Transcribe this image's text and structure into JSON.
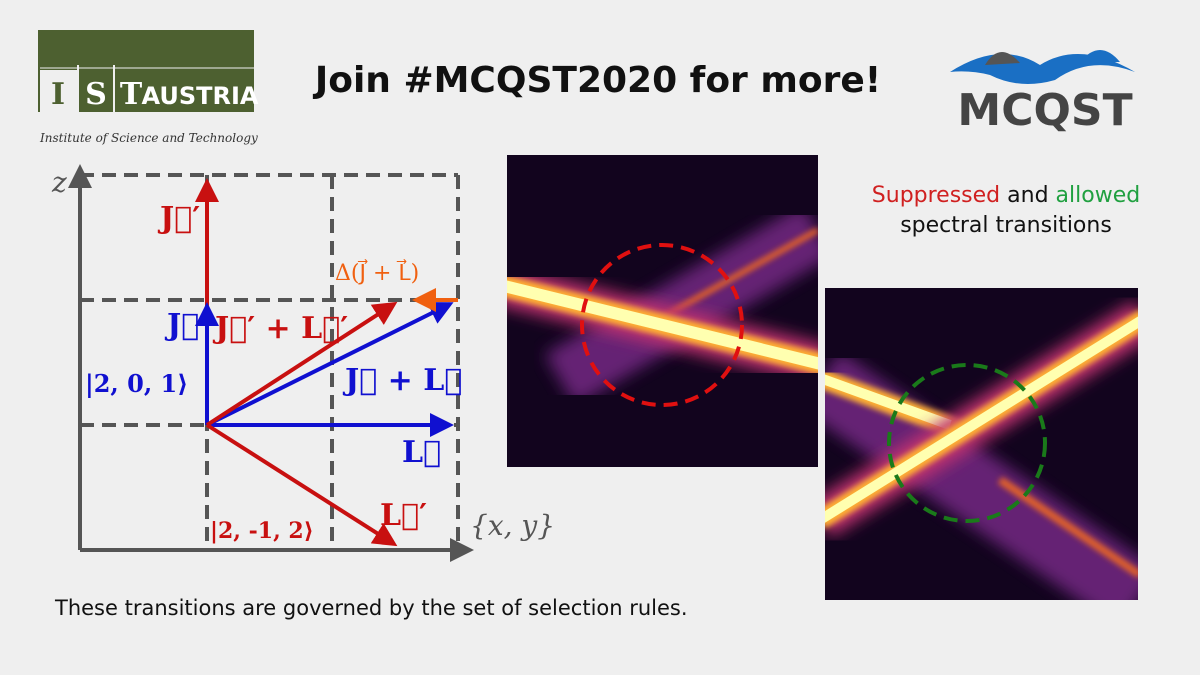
{
  "logo_left": {
    "letters": [
      "I",
      "S",
      "T"
    ],
    "word": "AUSTRIA",
    "tagline": "Institute of Science and Technology"
  },
  "title": "Join #MCQST2020 for more!",
  "logo_right": {
    "text": "MCQST"
  },
  "diagram": {
    "axis_z": "z",
    "axis_xy": "{x, y}",
    "j_prime": "J⃗′",
    "j": "J⃗",
    "j_prime_plus_l_prime": "J⃗′ + L⃗′",
    "delta": "Δ(J⃗ + L⃗)",
    "j_plus_l": "J⃗ + L⃗",
    "state_a": "|2, 0, 1⟩",
    "l": "L⃗",
    "l_prime": "L⃗′",
    "state_b": "|2, -1, 2⟩"
  },
  "legend": {
    "suppressed": "Suppressed",
    "and": "and",
    "allowed": "allowed",
    "line2": "spectral transitions"
  },
  "caption": "These transitions are governed by the set of selection rules."
}
